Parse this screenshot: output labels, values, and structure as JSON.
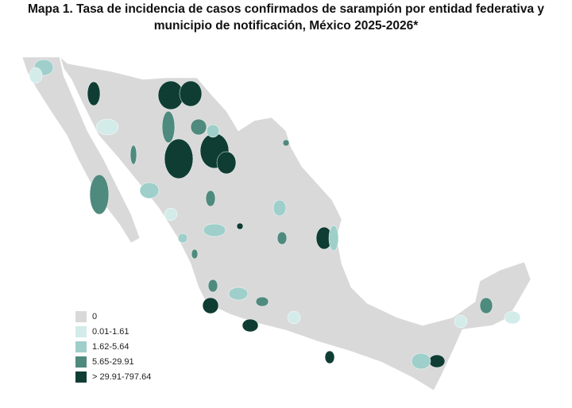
{
  "title": [
    "Mapa 1. Tasa de incidencia de casos confirmados de sarampión por entidad federativa y",
    "municipio de  notificación, México 2025-2026*"
  ],
  "legend": [
    {
      "label": "0",
      "color": "#d9d9d9"
    },
    {
      "label": "0.01-1.61",
      "color": "#d3ecea"
    },
    {
      "label": "1.62-5.64",
      "color": "#9fcfca"
    },
    {
      "label": "5.65-29.91",
      "color": "#4f8a7e"
    },
    {
      "label": "> 29.91-797.64",
      "color": "#0f3d33"
    }
  ]
}
